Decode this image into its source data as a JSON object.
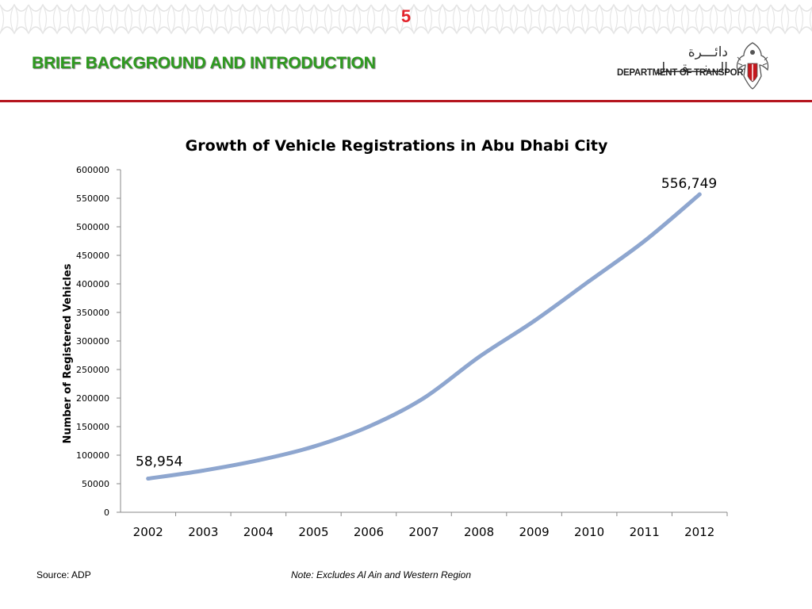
{
  "slide": {
    "number": "5",
    "title": "BRIEF BACKGROUND AND INTRODUCTION",
    "accent_red": "#b5151e",
    "title_green": "#2e9a1f"
  },
  "logo": {
    "arabic_text": "دائـــرة الـــنــــقــــل",
    "english_text": "DEPARTMENT OF TRANSPORT",
    "emblem_icon": "falcon-emblem-icon"
  },
  "chart_data": {
    "type": "line",
    "title": "Growth of Vehicle Registrations in Abu Dhabi City",
    "xlabel": "",
    "ylabel": "Number of Registered Vehicles",
    "categories": [
      "2002",
      "2003",
      "2004",
      "2005",
      "2006",
      "2007",
      "2008",
      "2009",
      "2010",
      "2011",
      "2012"
    ],
    "series": [
      {
        "values": [
          58954,
          73000,
          91000,
          115000,
          150000,
          200000,
          272000,
          335000,
          405000,
          475000,
          556749
        ],
        "color": "#8ea6cf"
      }
    ],
    "ylim": [
      0,
      600000
    ],
    "yticks": [
      "0",
      "50000",
      "100000",
      "150000",
      "200000",
      "250000",
      "300000",
      "350000",
      "400000",
      "450000",
      "500000",
      "550000",
      "600000"
    ],
    "data_labels": [
      {
        "category": "2002",
        "text": "58,954"
      },
      {
        "category": "2012",
        "text": "556,749"
      }
    ],
    "grid": false,
    "legend": "none"
  },
  "footer": {
    "source": "Source: ADP",
    "note": "Note: Excludes Al Ain and Western Region"
  }
}
